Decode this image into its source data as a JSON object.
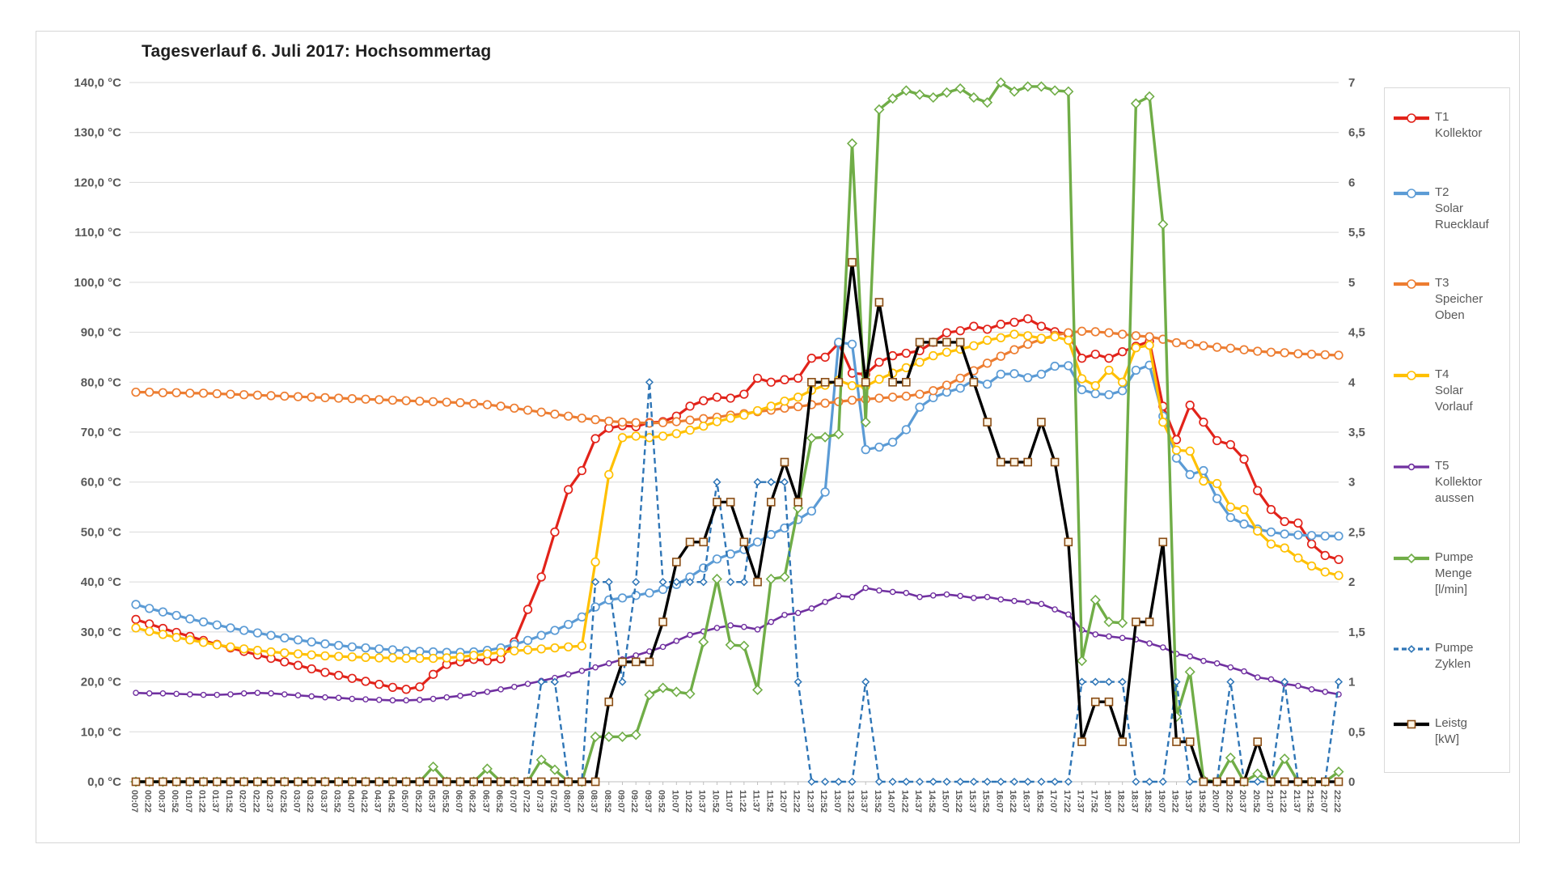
{
  "chart_data": {
    "type": "line",
    "title": "Tagesverlauf 6. Juli 2017: Hochsommertag",
    "grid": true,
    "legend_position": "right",
    "axes": {
      "left_label_suffix": "°C",
      "ylim_left": [
        0,
        140
      ],
      "ylim_right": [
        0,
        7
      ],
      "left_tick_labels": [
        "0,0 °C",
        "10,0 °C",
        "20,0 °C",
        "30,0 °C",
        "40,0 °C",
        "50,0 °C",
        "60,0 °C",
        "70,0 °C",
        "80,0 °C",
        "90,0 °C",
        "100,0 °C",
        "110,0 °C",
        "120,0 °C",
        "130,0 °C",
        "140,0 °C"
      ],
      "right_tick_labels": [
        "0",
        "0,5",
        "1",
        "1,5",
        "2",
        "2,5",
        "3",
        "3,5",
        "4",
        "4,5",
        "5",
        "5,5",
        "6",
        "6,5",
        "7"
      ]
    },
    "x": [
      "00:07",
      "00:22",
      "00:37",
      "00:52",
      "01:07",
      "01:22",
      "01:37",
      "01:52",
      "02:07",
      "02:22",
      "02:37",
      "02:52",
      "03:07",
      "03:22",
      "03:37",
      "03:52",
      "04:07",
      "04:22",
      "04:37",
      "04:52",
      "05:07",
      "05:22",
      "05:37",
      "05:52",
      "06:07",
      "06:22",
      "06:37",
      "06:52",
      "07:07",
      "07:22",
      "07:37",
      "07:52",
      "08:07",
      "08:22",
      "08:37",
      "08:52",
      "09:07",
      "09:22",
      "09:37",
      "09:52",
      "10:07",
      "10:22",
      "10:37",
      "10:52",
      "11:07",
      "11:22",
      "11:37",
      "11:52",
      "12:07",
      "12:22",
      "12:37",
      "12:52",
      "13:07",
      "13:22",
      "13:37",
      "13:52",
      "14:07",
      "14:22",
      "14:37",
      "14:52",
      "15:07",
      "15:22",
      "15:37",
      "15:52",
      "16:07",
      "16:22",
      "16:37",
      "16:52",
      "17:07",
      "17:22",
      "17:37",
      "17:52",
      "18:07",
      "18:22",
      "18:37",
      "18:52",
      "19:07",
      "19:22",
      "19:37",
      "19:52",
      "20:07",
      "20:22",
      "20:37",
      "20:52",
      "21:07",
      "21:22",
      "21:37",
      "21:52",
      "22:07",
      "22:22"
    ],
    "series": [
      {
        "name": "T1 Kollektor",
        "label_lines": [
          "T1",
          "Kollektor"
        ],
        "color": "#e2231a",
        "axis": "left",
        "marker": "circle",
        "dash": false,
        "values": [
          32.5,
          31.6,
          30.7,
          29.9,
          29.1,
          28.3,
          27.5,
          26.8,
          26.1,
          25.4,
          24.7,
          24.0,
          23.3,
          22.6,
          21.9,
          21.3,
          20.7,
          20.1,
          19.5,
          18.9,
          18.5,
          19.0,
          21.5,
          23.5,
          24.0,
          24.5,
          24.2,
          24.6,
          28.0,
          34.5,
          41.0,
          50.0,
          58.5,
          62.3,
          68.7,
          70.8,
          71.3,
          71.1,
          71.9,
          72.1,
          73.2,
          75.2,
          76.3,
          77.0,
          76.8,
          77.6,
          80.8,
          80.0,
          80.5,
          80.8,
          84.8,
          85.0,
          87.8,
          81.8,
          81.6,
          84.0,
          85.3,
          85.8,
          86.3,
          88.0,
          89.9,
          90.3,
          91.2,
          90.6,
          91.6,
          92.0,
          92.7,
          91.2,
          90.1,
          89.6,
          84.8,
          85.6,
          84.8,
          86.1,
          87.2,
          88.2,
          75.2,
          68.5,
          75.4,
          72.0,
          68.3,
          67.5,
          64.6,
          58.3,
          54.5,
          52.1,
          51.8,
          47.6,
          45.3,
          44.5
        ]
      },
      {
        "name": "T2 Solar Ruecklauf",
        "label_lines": [
          "T2",
          "Solar",
          "Ruecklauf"
        ],
        "color": "#5b9bd5",
        "axis": "left",
        "marker": "circle",
        "dash": false,
        "values": [
          35.5,
          34.7,
          34.0,
          33.3,
          32.6,
          32.0,
          31.4,
          30.8,
          30.3,
          29.8,
          29.3,
          28.8,
          28.4,
          28.0,
          27.6,
          27.3,
          27.0,
          26.8,
          26.6,
          26.4,
          26.2,
          26.1,
          26.0,
          25.9,
          25.9,
          26.0,
          26.3,
          26.8,
          27.5,
          28.3,
          29.3,
          30.3,
          31.5,
          33.0,
          35.0,
          36.4,
          36.8,
          37.3,
          37.8,
          38.5,
          39.5,
          41.0,
          42.8,
          44.6,
          45.6,
          46.5,
          48.0,
          49.5,
          50.8,
          52.5,
          54.2,
          58.0,
          88.0,
          87.6,
          66.5,
          67.0,
          68.0,
          70.5,
          75.0,
          76.9,
          78.0,
          78.8,
          80.4,
          79.6,
          81.6,
          81.7,
          80.9,
          81.6,
          83.2,
          83.3,
          78.5,
          77.7,
          77.5,
          78.3,
          82.4,
          83.4,
          73.2,
          64.8,
          61.5,
          62.3,
          56.7,
          52.9,
          51.6,
          50.6,
          50.0,
          49.6,
          49.4,
          49.3,
          49.2,
          49.2
        ]
      },
      {
        "name": "T3 Speicher Oben",
        "label_lines": [
          "T3",
          "Speicher",
          "Oben"
        ],
        "color": "#ed7d31",
        "axis": "left",
        "marker": "circle",
        "dash": false,
        "values": [
          78.0,
          78.0,
          77.9,
          77.9,
          77.8,
          77.8,
          77.7,
          77.6,
          77.5,
          77.4,
          77.3,
          77.2,
          77.1,
          77.0,
          76.9,
          76.8,
          76.7,
          76.6,
          76.5,
          76.4,
          76.3,
          76.2,
          76.1,
          76.0,
          75.9,
          75.7,
          75.5,
          75.2,
          74.8,
          74.4,
          74.0,
          73.6,
          73.2,
          72.8,
          72.5,
          72.2,
          72.0,
          71.9,
          71.8,
          71.9,
          72.1,
          72.4,
          72.7,
          73.0,
          73.4,
          73.7,
          74.1,
          74.4,
          74.8,
          75.1,
          75.5,
          75.8,
          76.1,
          76.4,
          76.6,
          76.8,
          77.0,
          77.2,
          77.6,
          78.3,
          79.4,
          80.8,
          82.3,
          83.8,
          85.2,
          86.5,
          87.6,
          88.6,
          89.4,
          89.9,
          90.2,
          90.1,
          89.9,
          89.6,
          89.3,
          89.1,
          88.6,
          87.9,
          87.6,
          87.3,
          87.0,
          86.8,
          86.5,
          86.2,
          86.0,
          85.9,
          85.7,
          85.6,
          85.5,
          85.4
        ]
      },
      {
        "name": "T4 Solar Vorlauf",
        "label_lines": [
          "T4",
          "Solar",
          "Vorlauf"
        ],
        "color": "#ffc000",
        "axis": "left",
        "marker": "circle",
        "dash": false,
        "values": [
          30.8,
          30.1,
          29.5,
          28.9,
          28.4,
          27.9,
          27.4,
          27.0,
          26.6,
          26.3,
          26.0,
          25.8,
          25.6,
          25.4,
          25.2,
          25.1,
          25.0,
          24.9,
          24.8,
          24.8,
          24.7,
          24.7,
          24.7,
          24.8,
          25.0,
          25.3,
          25.6,
          25.9,
          26.2,
          26.4,
          26.6,
          26.8,
          27.0,
          27.2,
          44.0,
          61.5,
          68.9,
          69.2,
          68.9,
          69.2,
          69.7,
          70.4,
          71.2,
          72.1,
          72.8,
          73.4,
          74.3,
          75.2,
          76.2,
          77.0,
          78.4,
          79.4,
          80.4,
          79.3,
          79.2,
          80.6,
          81.8,
          82.9,
          84.0,
          85.3,
          86.0,
          86.6,
          87.3,
          88.4,
          88.9,
          89.6,
          89.3,
          88.8,
          89.1,
          88.4,
          80.7,
          79.3,
          82.4,
          80.0,
          86.9,
          87.4,
          72.0,
          66.4,
          66.2,
          60.2,
          59.7,
          55.0,
          54.5,
          50.2,
          47.6,
          46.8,
          44.8,
          43.2,
          42.0,
          41.3
        ]
      },
      {
        "name": "T5 Kollektor aussen",
        "label_lines": [
          "T5",
          "Kollektor",
          "aussen"
        ],
        "color": "#7030a0",
        "axis": "left",
        "marker": "smallcircle",
        "dash": false,
        "values": [
          17.8,
          17.7,
          17.7,
          17.6,
          17.5,
          17.4,
          17.4,
          17.5,
          17.7,
          17.8,
          17.7,
          17.5,
          17.3,
          17.1,
          16.9,
          16.8,
          16.6,
          16.5,
          16.4,
          16.3,
          16.3,
          16.4,
          16.6,
          16.9,
          17.2,
          17.6,
          18.0,
          18.5,
          19.0,
          19.6,
          20.2,
          20.8,
          21.5,
          22.2,
          22.9,
          23.7,
          24.5,
          25.3,
          26.1,
          27.0,
          28.2,
          29.4,
          30.1,
          30.8,
          31.3,
          31.0,
          30.5,
          32.0,
          33.4,
          33.8,
          34.7,
          36.0,
          37.2,
          37.0,
          38.8,
          38.3,
          38.0,
          37.8,
          37.0,
          37.3,
          37.5,
          37.2,
          36.8,
          37.0,
          36.5,
          36.2,
          36.0,
          35.6,
          34.5,
          33.5,
          30.4,
          29.5,
          29.1,
          28.8,
          28.5,
          27.7,
          26.9,
          25.6,
          25.1,
          24.2,
          23.7,
          22.9,
          22.1,
          20.9,
          20.5,
          19.6,
          19.2,
          18.5,
          18.0,
          17.5
        ]
      },
      {
        "name": "Pumpe Menge [l/min]",
        "label_lines": [
          "Pumpe",
          "Menge",
          "[l/min]"
        ],
        "color": "#70ad47",
        "axis": "right",
        "marker": "diamond",
        "dash": false,
        "values": [
          0,
          0,
          0,
          0,
          0,
          0,
          0,
          0,
          0,
          0,
          0,
          0,
          0,
          0,
          0,
          0,
          0,
          0,
          0,
          0,
          0,
          0,
          0.15,
          0,
          0,
          0,
          0.13,
          0,
          0,
          0,
          0.22,
          0.12,
          0,
          0,
          0.45,
          0.45,
          0.45,
          0.47,
          0.87,
          0.94,
          0.9,
          0.88,
          1.4,
          2.03,
          1.37,
          1.36,
          0.92,
          2.03,
          2.05,
          2.74,
          3.44,
          3.45,
          3.48,
          6.39,
          3.6,
          6.73,
          6.84,
          6.92,
          6.88,
          6.85,
          6.9,
          6.94,
          6.85,
          6.8,
          7.0,
          6.91,
          6.96,
          6.96,
          6.92,
          6.91,
          1.21,
          1.82,
          1.6,
          1.59,
          6.79,
          6.86,
          5.58,
          0.65,
          1.1,
          0.02,
          0,
          0.24,
          0,
          0.08,
          0,
          0.23,
          0,
          0,
          0,
          0.1
        ]
      },
      {
        "name": "Pumpe Zyklen",
        "label_lines": [
          "Pumpe",
          "Zyklen"
        ],
        "color": "#2e75b6",
        "axis": "right",
        "marker": "smalldiamond",
        "dash": true,
        "values": [
          0,
          0,
          0,
          0,
          0,
          0,
          0,
          0,
          0,
          0,
          0,
          0,
          0,
          0,
          0,
          0,
          0,
          0,
          0,
          0,
          0,
          0,
          0,
          0,
          0,
          0,
          0,
          0,
          0,
          0,
          1,
          1,
          0,
          0,
          2,
          2,
          1,
          2,
          4,
          2,
          2,
          2,
          2,
          3,
          2,
          2,
          3,
          3,
          3,
          1,
          0,
          0,
          0,
          0,
          1,
          0,
          0,
          0,
          0,
          0,
          0,
          0,
          0,
          0,
          0,
          0,
          0,
          0,
          0,
          0,
          1,
          1,
          1,
          1,
          0,
          0,
          0,
          1,
          0,
          0,
          0,
          1,
          0,
          0,
          0,
          1,
          0,
          0,
          0,
          1
        ]
      },
      {
        "name": "Leistg [kW]",
        "label_lines": [
          "Leistg",
          "[kW]"
        ],
        "color": "#000000",
        "marker_fill": "#fdf6e8",
        "marker_stroke": "#8a4d15",
        "axis": "right",
        "marker": "square",
        "dash": false,
        "values": [
          0,
          0,
          0,
          0,
          0,
          0,
          0,
          0,
          0,
          0,
          0,
          0,
          0,
          0,
          0,
          0,
          0,
          0,
          0,
          0,
          0,
          0,
          0,
          0,
          0,
          0,
          0,
          0,
          0,
          0,
          0,
          0,
          0,
          0,
          0,
          0.8,
          1.2,
          1.2,
          1.2,
          1.6,
          2.2,
          2.4,
          2.4,
          2.8,
          2.8,
          2.4,
          2.0,
          2.8,
          3.2,
          2.8,
          4.0,
          4.0,
          4.0,
          5.2,
          4.0,
          4.8,
          4.0,
          4.0,
          4.4,
          4.4,
          4.4,
          4.4,
          4.0,
          3.6,
          3.2,
          3.2,
          3.2,
          3.6,
          3.2,
          2.4,
          0.4,
          0.8,
          0.8,
          0.4,
          1.6,
          1.6,
          2.4,
          0.4,
          0.4,
          0,
          0,
          0,
          0,
          0.4,
          0,
          0,
          0,
          0,
          0,
          0
        ]
      }
    ],
    "colors": {
      "gridline": "#d9d9d9",
      "axis_text": "#595959",
      "axis_line": "#bfbfbf",
      "title_text": "#1f1f1f"
    }
  }
}
